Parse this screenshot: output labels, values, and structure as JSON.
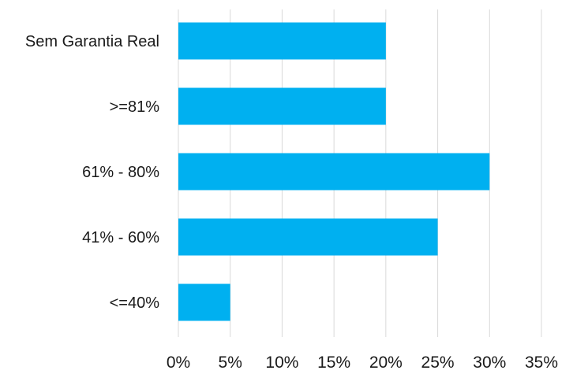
{
  "chart_data": {
    "type": "bar",
    "orientation": "horizontal",
    "categories": [
      "Sem Garantia Real",
      ">=81%",
      "61% - 80%",
      "41% - 60%",
      "<=40%"
    ],
    "values": [
      0.2,
      0.2,
      0.3,
      0.25,
      0.05
    ],
    "xlim": [
      0,
      0.35
    ],
    "x_ticks": [
      0,
      0.05,
      0.1,
      0.15,
      0.2,
      0.25,
      0.3,
      0.35
    ],
    "x_tick_labels": [
      "0%",
      "5%",
      "10%",
      "15%",
      "20%",
      "25%",
      "30%",
      "35%"
    ],
    "title": "",
    "xlabel": "",
    "ylabel": "",
    "grid": "vertical",
    "legend": "none",
    "bar_color": "#00B0F0",
    "grid_color": "#d9d9d9"
  }
}
